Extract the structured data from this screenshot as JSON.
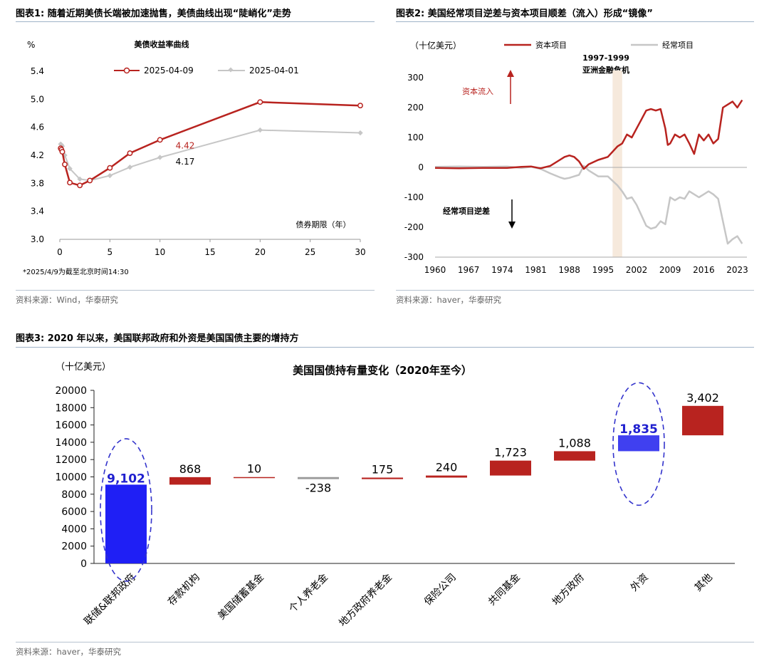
{
  "fig1": {
    "heading": "图表1:  随着近期美债长端被加速抛售，美债曲线出现“陡峭化”走势",
    "source": "资料来源：Wind，华泰研究",
    "chart_data": {
      "type": "line",
      "title": "美债收益率曲线",
      "ylabel": "%",
      "xlabel": "债券期限（年）",
      "ylim": [
        3.0,
        5.4
      ],
      "xlim": [
        0,
        30
      ],
      "yticks": [
        "3.0",
        "3.4",
        "3.8",
        "4.2",
        "4.6",
        "5.0",
        "5.4"
      ],
      "xticks": [
        "0",
        "5",
        "10",
        "15",
        "20",
        "25",
        "30"
      ],
      "note": "*2025/4/9为截至北京时间14:30",
      "series": [
        {
          "name": "2025-04-09",
          "color": "#b8231f",
          "x": [
            0.083,
            0.167,
            0.25,
            0.5,
            1,
            2,
            3,
            5,
            7,
            10,
            20,
            30
          ],
          "y": [
            4.3,
            4.28,
            4.25,
            4.07,
            3.81,
            3.77,
            3.84,
            4.02,
            4.23,
            4.42,
            4.96,
            4.91
          ]
        },
        {
          "name": "2025-04-01",
          "color": "#c6c6c6",
          "x": [
            0.083,
            0.167,
            0.25,
            0.5,
            1,
            2,
            3,
            5,
            7,
            10,
            20,
            30
          ],
          "y": [
            4.36,
            4.35,
            4.33,
            4.2,
            4.01,
            3.86,
            3.84,
            3.91,
            4.03,
            4.17,
            4.56,
            4.52
          ]
        }
      ],
      "annotations": [
        "4.42",
        "4.17"
      ]
    }
  },
  "fig2": {
    "heading": "图表2:  美国经常项目逆差与资本项目顺差（流入）形成“镜像”",
    "source": "资料来源：haver，华泰研究",
    "chart_data": {
      "type": "line",
      "ylabel": "（十亿美元）",
      "ylim": [
        -300,
        300
      ],
      "yticks": [
        "300",
        "200",
        "100",
        "0",
        "-100",
        "-200",
        "-300"
      ],
      "xticks": [
        "1960",
        "1967",
        "1974",
        "1981",
        "1988",
        "1995",
        "2002",
        "2009",
        "2016",
        "2023"
      ],
      "xlim": [
        1960,
        2025
      ],
      "band": {
        "from": 1997,
        "to": 1999,
        "label1": "1997-1999",
        "label2": "亚洲金融危机"
      },
      "arrow_up_label": "资本流入",
      "arrow_down_label": "经常项目逆差",
      "series": [
        {
          "name": "资本项目",
          "color": "#b8231f",
          "x": [
            1960,
            1965,
            1970,
            1975,
            1978,
            1980,
            1982,
            1984,
            1986,
            1987,
            1988,
            1989,
            1990,
            1991,
            1992,
            1994,
            1996,
            1998,
            1999,
            2000,
            2001,
            2002,
            2003,
            2004,
            2005,
            2006,
            2007,
            2008,
            2008.5,
            2009,
            2010,
            2011,
            2012,
            2013,
            2014,
            2015,
            2016,
            2017,
            2018,
            2019,
            2020,
            2021,
            2022,
            2023,
            2024
          ],
          "y": [
            -2,
            -3,
            -2,
            -2,
            2,
            3,
            -3,
            5,
            25,
            35,
            40,
            35,
            20,
            -5,
            10,
            25,
            35,
            70,
            80,
            110,
            100,
            130,
            160,
            190,
            195,
            190,
            195,
            130,
            75,
            80,
            110,
            100,
            110,
            80,
            45,
            110,
            90,
            110,
            80,
            95,
            200,
            210,
            220,
            200,
            225
          ]
        },
        {
          "name": "经常项目",
          "color": "#c6c6c6",
          "x": [
            1960,
            1965,
            1970,
            1975,
            1978,
            1980,
            1982,
            1984,
            1986,
            1987,
            1988,
            1989,
            1990,
            1991,
            1992,
            1994,
            1996,
            1998,
            1999,
            2000,
            2001,
            2002,
            2003,
            2004,
            2005,
            2006,
            2007,
            2008,
            2009,
            2010,
            2011,
            2012,
            2013,
            2014,
            2015,
            2016,
            2017,
            2018,
            2019,
            2020,
            2021,
            2022,
            2023,
            2024
          ],
          "y": [
            2,
            3,
            2,
            3,
            -2,
            2,
            -5,
            -20,
            -33,
            -38,
            -35,
            -30,
            -25,
            5,
            -10,
            -30,
            -30,
            -60,
            -80,
            -105,
            -100,
            -125,
            -160,
            -195,
            -205,
            -200,
            -180,
            -190,
            -100,
            -110,
            -100,
            -105,
            -80,
            -90,
            -100,
            -90,
            -80,
            -90,
            -105,
            -180,
            -255,
            -240,
            -230,
            -255
          ]
        }
      ]
    }
  },
  "fig3": {
    "heading": "图表3:  2020 年以来，美国联邦政府和外资是美国国债主要的增持方",
    "source": "资料来源：haver，华泰研究",
    "chart_data": {
      "type": "bar",
      "title": "美国国债持有量变化（2020年至今）",
      "ylabel": "（十亿美元）",
      "ylim": [
        0,
        20000
      ],
      "yticks": [
        "20000",
        "18000",
        "16000",
        "14000",
        "12000",
        "10000",
        "8000",
        "6000",
        "4000",
        "2000",
        "0"
      ],
      "categories": [
        "联储&联邦政府",
        "存款机构",
        "美国储蓄基金",
        "个人养老金",
        "地方政府养老金",
        "保险公司",
        "共同基金",
        "地方政府",
        "外资",
        "其他"
      ],
      "values": [
        9102,
        868,
        10,
        -238,
        175,
        240,
        1723,
        1088,
        1835,
        3402
      ],
      "labels": [
        "9,102",
        "868",
        "10",
        "-238",
        "175",
        "240",
        "1,723",
        "1,088",
        "1,835",
        "3,402"
      ],
      "colors": [
        "#1f1ff5",
        "#b8231f",
        "#b8231f",
        "#9a9a9a",
        "#b8231f",
        "#b8231f",
        "#b8231f",
        "#b8231f",
        "#4040f0",
        "#b8231f"
      ]
    }
  }
}
